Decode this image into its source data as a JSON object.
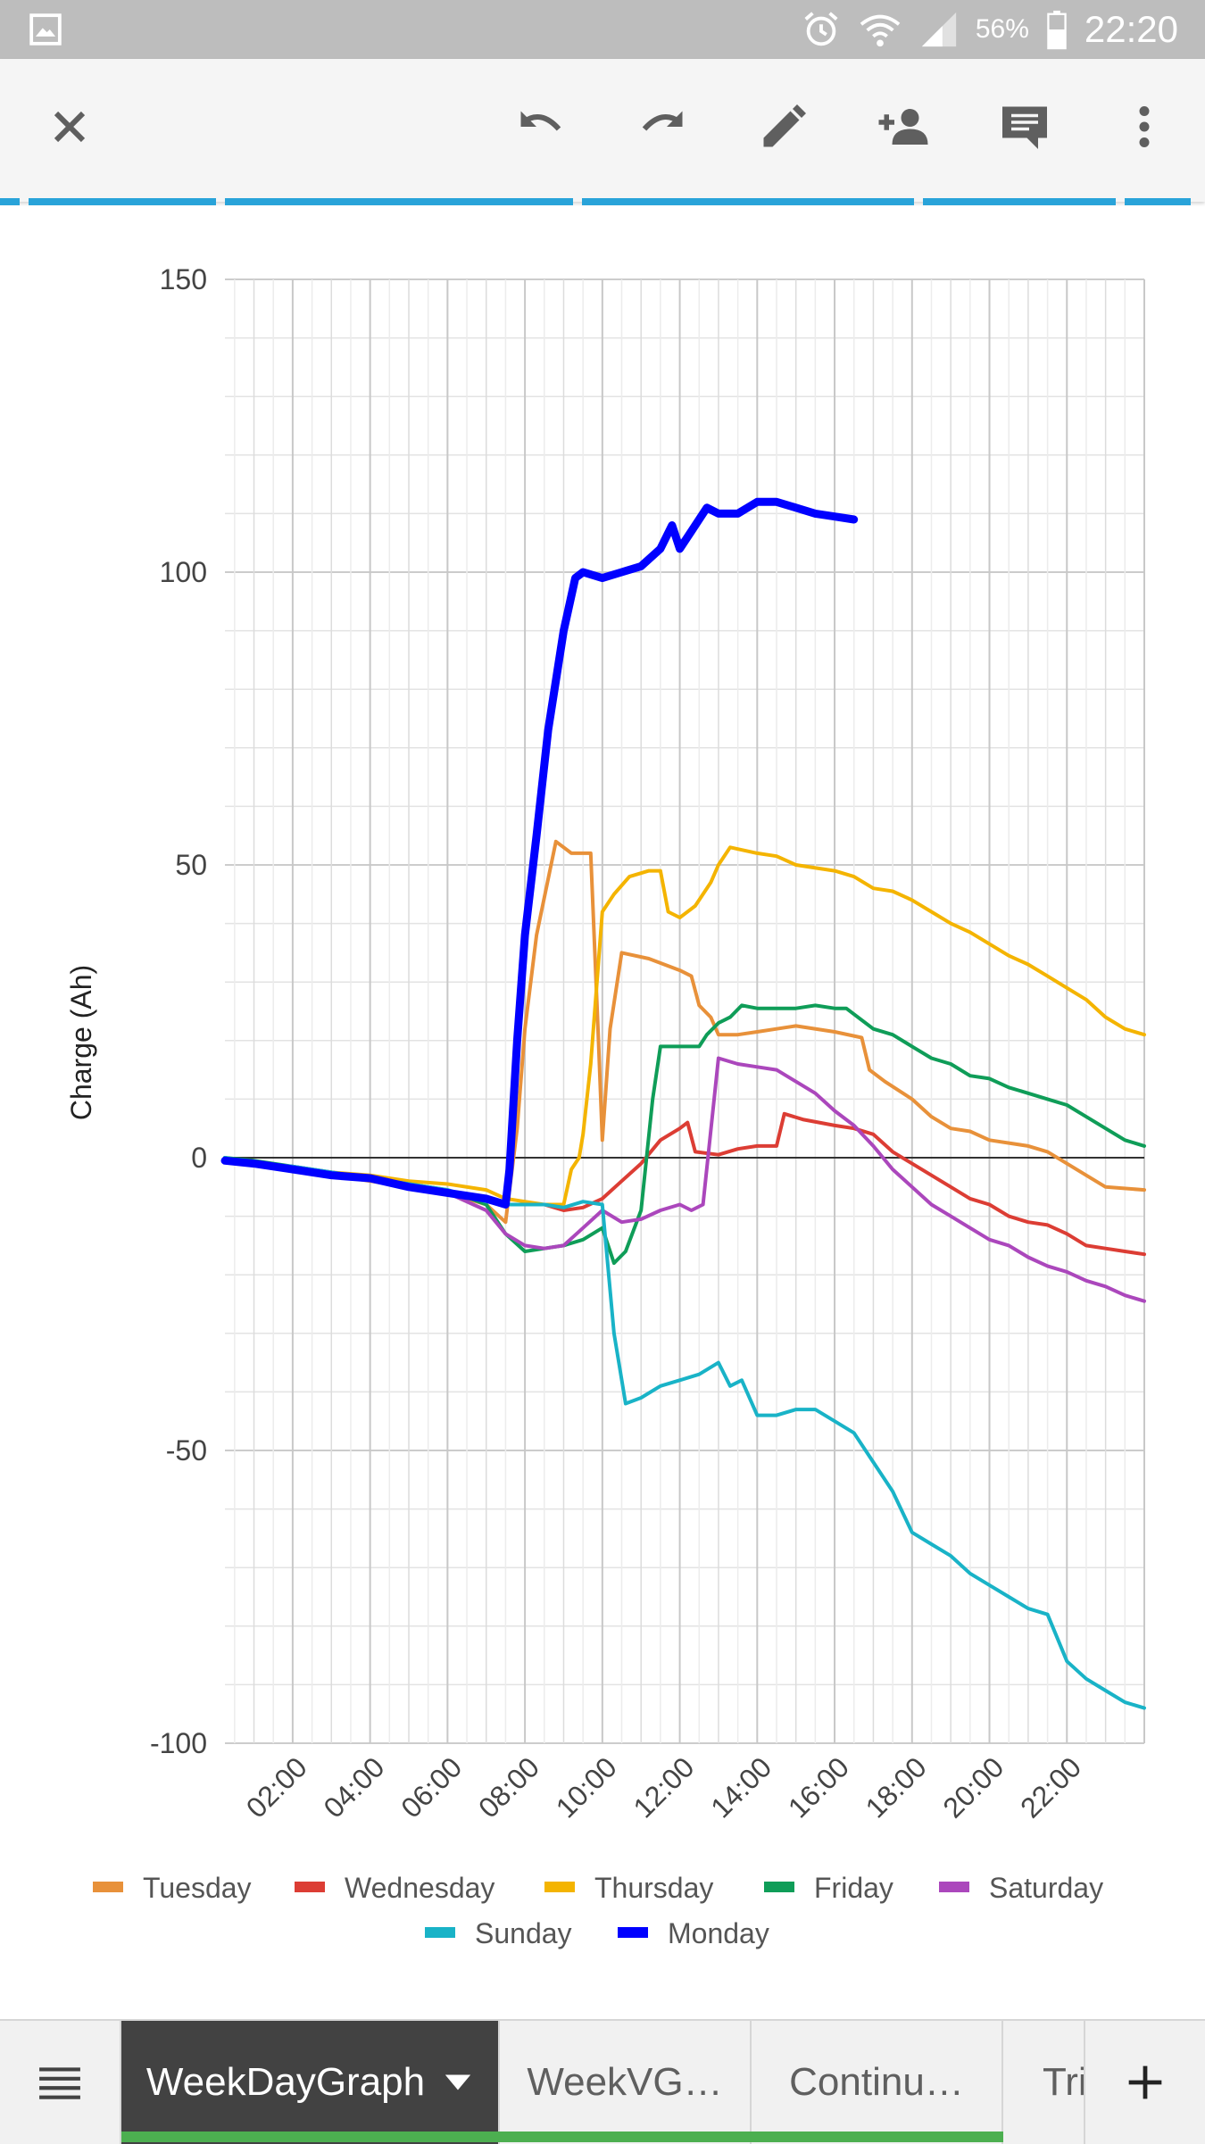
{
  "status_bar": {
    "battery_percent": "56%",
    "time": "22:20",
    "icons": [
      "gallery-icon",
      "alarm-icon",
      "wifi-icon",
      "signal-icon",
      "battery-icon"
    ]
  },
  "toolbar": {
    "icons": [
      "close-icon",
      "undo-icon",
      "redo-icon",
      "edit-pencil-icon",
      "add-person-icon",
      "comment-icon",
      "more-vert-icon"
    ]
  },
  "colors": {
    "Tuesday": "#e8913a",
    "Wednesday": "#dc3d34",
    "Thursday": "#f4b400",
    "Friday": "#0f9d58",
    "Saturday": "#ab47bc",
    "Sunday": "#19b3c7",
    "Monday": "#0000ff"
  },
  "chart_data": {
    "type": "line",
    "ylabel": "Charge (Ah)",
    "ylim": [
      -100,
      150
    ],
    "yticks": [
      "150",
      "100",
      "50",
      "0",
      "-50",
      "-100"
    ],
    "xlim": [
      0.25,
      24
    ],
    "xticks": [
      "02:00",
      "04:00",
      "06:00",
      "08:00",
      "10:00",
      "12:00",
      "14:00",
      "16:00",
      "18:00",
      "20:00",
      "22:00"
    ],
    "grid": true,
    "legend_position": "bottom",
    "series": [
      {
        "name": "Tuesday",
        "points": [
          [
            0.25,
            0
          ],
          [
            1,
            -1
          ],
          [
            2,
            -2
          ],
          [
            3,
            -3
          ],
          [
            4,
            -4
          ],
          [
            5,
            -5
          ],
          [
            6,
            -6
          ],
          [
            7,
            -8
          ],
          [
            7.5,
            -11
          ],
          [
            7.8,
            5
          ],
          [
            8,
            22
          ],
          [
            8.3,
            38
          ],
          [
            8.8,
            54
          ],
          [
            9.2,
            52
          ],
          [
            9.7,
            52
          ],
          [
            9.9,
            20
          ],
          [
            10,
            3
          ],
          [
            10.2,
            22
          ],
          [
            10.5,
            35
          ],
          [
            11.2,
            34
          ],
          [
            12,
            32
          ],
          [
            12.3,
            31
          ],
          [
            12.5,
            26
          ],
          [
            12.8,
            24
          ],
          [
            13,
            21
          ],
          [
            13.5,
            21
          ],
          [
            14,
            21.5
          ],
          [
            14.5,
            22
          ],
          [
            15,
            22.5
          ],
          [
            16,
            21.5
          ],
          [
            16.7,
            20.5
          ],
          [
            16.9,
            15
          ],
          [
            17.3,
            13
          ],
          [
            18,
            10
          ],
          [
            18.5,
            7
          ],
          [
            19,
            5
          ],
          [
            19.5,
            4.5
          ],
          [
            20,
            3
          ],
          [
            21,
            2
          ],
          [
            21.5,
            1
          ],
          [
            22,
            -1
          ],
          [
            22.5,
            -3
          ],
          [
            23,
            -5
          ],
          [
            24,
            -5.5
          ]
        ]
      },
      {
        "name": "Wednesday",
        "points": [
          [
            0.25,
            -0.5
          ],
          [
            1,
            -1
          ],
          [
            2,
            -2
          ],
          [
            3,
            -3
          ],
          [
            4,
            -3.5
          ],
          [
            5,
            -5
          ],
          [
            6,
            -6
          ],
          [
            7,
            -7
          ],
          [
            7.5,
            -8
          ],
          [
            8,
            -8
          ],
          [
            8.5,
            -8
          ],
          [
            9,
            -9
          ],
          [
            9.5,
            -8.5
          ],
          [
            10,
            -7
          ],
          [
            10.5,
            -4
          ],
          [
            11,
            -1
          ],
          [
            11.5,
            3
          ],
          [
            12,
            5
          ],
          [
            12.2,
            6
          ],
          [
            12.4,
            1
          ],
          [
            13,
            0.5
          ],
          [
            13.5,
            1.5
          ],
          [
            14,
            2
          ],
          [
            14.5,
            2
          ],
          [
            14.7,
            7.5
          ],
          [
            15.2,
            6.5
          ],
          [
            16,
            5.5
          ],
          [
            16.5,
            5
          ],
          [
            17,
            4
          ],
          [
            17.5,
            1
          ],
          [
            18,
            -1
          ],
          [
            18.5,
            -3
          ],
          [
            19,
            -5
          ],
          [
            19.5,
            -7
          ],
          [
            20,
            -8
          ],
          [
            20.5,
            -10
          ],
          [
            21,
            -11
          ],
          [
            21.5,
            -11.5
          ],
          [
            22,
            -13
          ],
          [
            22.5,
            -15
          ],
          [
            23,
            -15.5
          ],
          [
            23.5,
            -16
          ],
          [
            24,
            -16.5
          ]
        ]
      },
      {
        "name": "Thursday",
        "points": [
          [
            0.25,
            0
          ],
          [
            1,
            -1
          ],
          [
            2,
            -2
          ],
          [
            3,
            -2.5
          ],
          [
            4,
            -3
          ],
          [
            5,
            -4
          ],
          [
            6,
            -4.5
          ],
          [
            7,
            -5.5
          ],
          [
            7.5,
            -7
          ],
          [
            8,
            -7.5
          ],
          [
            8.5,
            -8
          ],
          [
            9,
            -8
          ],
          [
            9.2,
            -2
          ],
          [
            9.4,
            0
          ],
          [
            9.5,
            4
          ],
          [
            9.7,
            16
          ],
          [
            10,
            42
          ],
          [
            10.3,
            45
          ],
          [
            10.7,
            48
          ],
          [
            11.2,
            49
          ],
          [
            11.5,
            49
          ],
          [
            11.7,
            42
          ],
          [
            12,
            41
          ],
          [
            12.4,
            43
          ],
          [
            12.8,
            47
          ],
          [
            13,
            50
          ],
          [
            13.3,
            53
          ],
          [
            14,
            52
          ],
          [
            14.5,
            51.5
          ],
          [
            15,
            50
          ],
          [
            16,
            49
          ],
          [
            16.5,
            48
          ],
          [
            17,
            46
          ],
          [
            17.5,
            45.5
          ],
          [
            18,
            44
          ],
          [
            18.5,
            42
          ],
          [
            19,
            40
          ],
          [
            19.5,
            38.5
          ],
          [
            20,
            36.5
          ],
          [
            20.5,
            34.5
          ],
          [
            21,
            33
          ],
          [
            21.5,
            31
          ],
          [
            22,
            29
          ],
          [
            22.5,
            27
          ],
          [
            23,
            24
          ],
          [
            23.5,
            22
          ],
          [
            24,
            21
          ]
        ]
      },
      {
        "name": "Friday",
        "points": [
          [
            0.25,
            0
          ],
          [
            1,
            -0.5
          ],
          [
            2,
            -1.5
          ],
          [
            3,
            -2.5
          ],
          [
            4,
            -3.5
          ],
          [
            5,
            -4.5
          ],
          [
            6,
            -5.5
          ],
          [
            7,
            -8
          ],
          [
            7.5,
            -13
          ],
          [
            8,
            -16
          ],
          [
            8.5,
            -15.5
          ],
          [
            9,
            -15
          ],
          [
            9.5,
            -14
          ],
          [
            10,
            -12
          ],
          [
            10.3,
            -18
          ],
          [
            10.6,
            -16
          ],
          [
            11,
            -9
          ],
          [
            11.3,
            10
          ],
          [
            11.5,
            19
          ],
          [
            12,
            19
          ],
          [
            12.5,
            19
          ],
          [
            12.7,
            21
          ],
          [
            13,
            23
          ],
          [
            13.3,
            24
          ],
          [
            13.6,
            26
          ],
          [
            14,
            25.5
          ],
          [
            15,
            25.5
          ],
          [
            15.5,
            26
          ],
          [
            16,
            25.5
          ],
          [
            16.3,
            25.5
          ],
          [
            17,
            22
          ],
          [
            17.5,
            21
          ],
          [
            18,
            19
          ],
          [
            18.5,
            17
          ],
          [
            19,
            16
          ],
          [
            19.5,
            14
          ],
          [
            20,
            13.5
          ],
          [
            20.5,
            12
          ],
          [
            21,
            11
          ],
          [
            21.5,
            10
          ],
          [
            22,
            9
          ],
          [
            22.5,
            7
          ],
          [
            23,
            5
          ],
          [
            23.5,
            3
          ],
          [
            24,
            2
          ]
        ]
      },
      {
        "name": "Saturday",
        "points": [
          [
            0.25,
            -0.5
          ],
          [
            1,
            -1
          ],
          [
            2,
            -1.5
          ],
          [
            3,
            -2.5
          ],
          [
            4,
            -3.5
          ],
          [
            5,
            -5
          ],
          [
            6,
            -6
          ],
          [
            7,
            -9
          ],
          [
            7.5,
            -13
          ],
          [
            8,
            -15
          ],
          [
            8.5,
            -15.5
          ],
          [
            9,
            -15
          ],
          [
            9.5,
            -12
          ],
          [
            10,
            -9
          ],
          [
            10.5,
            -11
          ],
          [
            11,
            -10.5
          ],
          [
            11.5,
            -9
          ],
          [
            12,
            -8
          ],
          [
            12.3,
            -9
          ],
          [
            12.6,
            -8
          ],
          [
            13,
            17
          ],
          [
            13.5,
            16
          ],
          [
            14,
            15.5
          ],
          [
            14.5,
            15
          ],
          [
            15,
            13
          ],
          [
            15.5,
            11
          ],
          [
            16,
            8
          ],
          [
            16.5,
            5.5
          ],
          [
            17,
            2
          ],
          [
            17.5,
            -2
          ],
          [
            18,
            -5
          ],
          [
            18.5,
            -8
          ],
          [
            19,
            -10
          ],
          [
            19.5,
            -12
          ],
          [
            20,
            -14
          ],
          [
            20.5,
            -15
          ],
          [
            21,
            -17
          ],
          [
            21.5,
            -18.5
          ],
          [
            22,
            -19.5
          ],
          [
            22.5,
            -21
          ],
          [
            23,
            -22
          ],
          [
            23.5,
            -23.5
          ],
          [
            24,
            -24.5
          ]
        ]
      },
      {
        "name": "Sunday",
        "points": [
          [
            0.25,
            0
          ],
          [
            1,
            -1
          ],
          [
            2,
            -1.5
          ],
          [
            3,
            -2.5
          ],
          [
            4,
            -3.5
          ],
          [
            5,
            -4.5
          ],
          [
            6,
            -5.5
          ],
          [
            7,
            -7.5
          ],
          [
            7.5,
            -8
          ],
          [
            8,
            -8
          ],
          [
            8.5,
            -8
          ],
          [
            9,
            -8.5
          ],
          [
            9.5,
            -7.5
          ],
          [
            10,
            -8
          ],
          [
            10.3,
            -30
          ],
          [
            10.6,
            -42
          ],
          [
            11,
            -41
          ],
          [
            11.5,
            -39
          ],
          [
            12,
            -38
          ],
          [
            12.5,
            -37
          ],
          [
            13,
            -35
          ],
          [
            13.3,
            -39
          ],
          [
            13.6,
            -38
          ],
          [
            14,
            -44
          ],
          [
            14.5,
            -44
          ],
          [
            15,
            -43
          ],
          [
            15.5,
            -43
          ],
          [
            16,
            -45
          ],
          [
            16.5,
            -47
          ],
          [
            17,
            -52
          ],
          [
            17.5,
            -57
          ],
          [
            18,
            -64
          ],
          [
            18.5,
            -66
          ],
          [
            19,
            -68
          ],
          [
            19.5,
            -71
          ],
          [
            20,
            -73
          ],
          [
            20.5,
            -75
          ],
          [
            21,
            -77
          ],
          [
            21.5,
            -78
          ],
          [
            22,
            -86
          ],
          [
            22.5,
            -89
          ],
          [
            23,
            -91
          ],
          [
            23.5,
            -93
          ],
          [
            24,
            -94
          ]
        ]
      },
      {
        "name": "Monday",
        "points": [
          [
            0.25,
            -0.5
          ],
          [
            1,
            -1
          ],
          [
            2,
            -2
          ],
          [
            3,
            -3
          ],
          [
            4,
            -3.5
          ],
          [
            5,
            -5
          ],
          [
            6,
            -6
          ],
          [
            7,
            -7
          ],
          [
            7.5,
            -8
          ],
          [
            7.6,
            -2
          ],
          [
            7.8,
            20
          ],
          [
            8,
            38
          ],
          [
            8.3,
            55
          ],
          [
            8.6,
            73
          ],
          [
            9,
            90
          ],
          [
            9.3,
            99
          ],
          [
            9.5,
            100
          ],
          [
            10,
            99
          ],
          [
            10.5,
            100
          ],
          [
            11,
            101
          ],
          [
            11.5,
            104
          ],
          [
            11.8,
            108
          ],
          [
            12,
            104
          ],
          [
            12.3,
            107
          ],
          [
            12.7,
            111
          ],
          [
            13,
            110
          ],
          [
            13.5,
            110
          ],
          [
            14,
            112
          ],
          [
            14.5,
            112
          ],
          [
            15,
            111
          ],
          [
            15.5,
            110
          ],
          [
            16,
            109.5
          ],
          [
            16.5,
            109
          ]
        ]
      }
    ]
  },
  "sheet_tabs": {
    "menu_icon": "menu-lines-icon",
    "tabs": [
      "WeekDayGraph",
      "WeekVG…",
      "Continu…",
      "Tri"
    ],
    "add_icon": "add-sheet-icon"
  }
}
